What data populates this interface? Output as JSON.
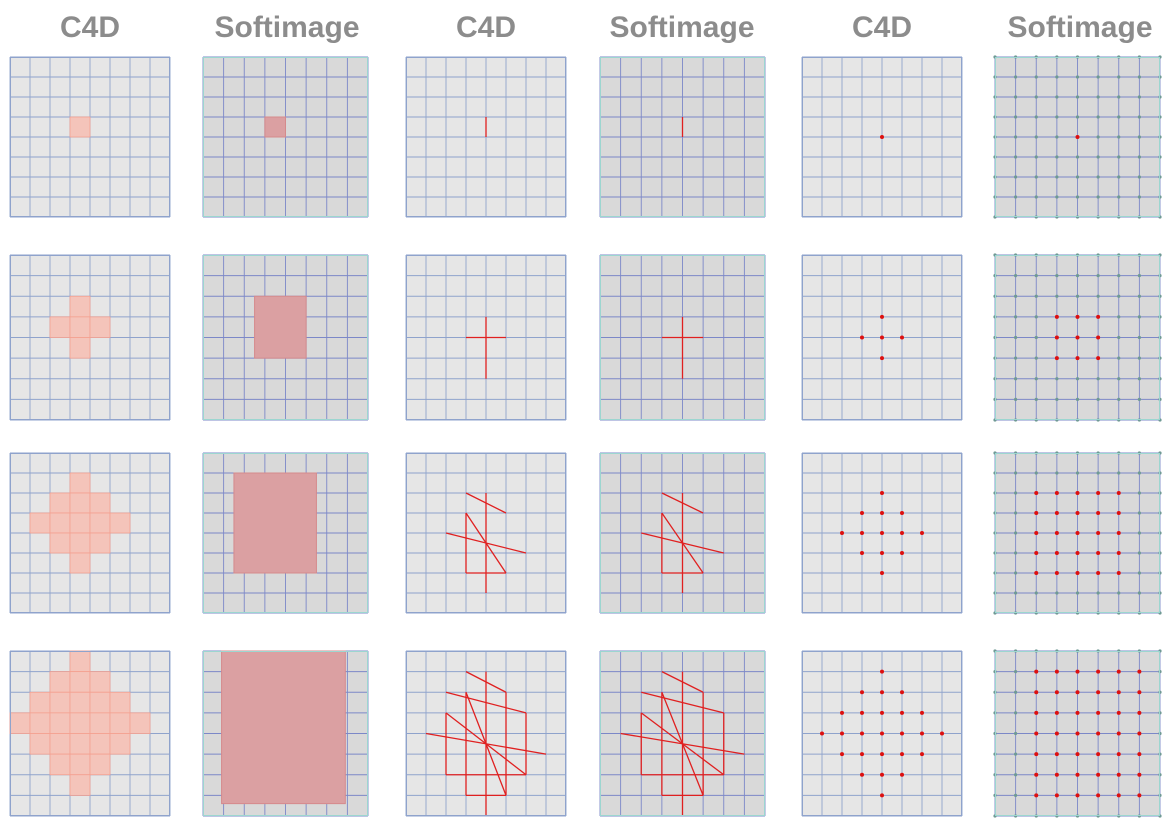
{
  "headers": [
    "C4D",
    "Softimage",
    "C4D",
    "Softimage",
    "C4D",
    "Softimage"
  ],
  "grid_divisions": 8,
  "panel_kinds": [
    "c4d-poly",
    "soft-poly",
    "c4d-edge",
    "soft-edge",
    "c4d-point",
    "soft-point"
  ],
  "rows": [
    {
      "c4d_poly": [
        [
          3,
          3
        ]
      ],
      "soft_poly": [
        3,
        3,
        4,
        4
      ],
      "c4d_edge": [
        [
          4,
          4,
          3,
          4
        ]
      ],
      "soft_edge": [
        [
          4,
          4,
          3,
          4
        ]
      ],
      "c4d_point": [
        [
          4,
          4
        ]
      ],
      "soft_point": [
        [
          4,
          4
        ]
      ]
    },
    {
      "c4d_poly": [
        [
          3,
          2
        ],
        [
          2,
          3
        ],
        [
          3,
          3
        ],
        [
          4,
          3
        ],
        [
          3,
          4
        ]
      ],
      "soft_poly": [
        2.5,
        2,
        5,
        5
      ],
      "c4d_edge": [
        [
          4,
          4,
          3,
          6
        ],
        [
          3,
          5,
          4,
          4
        ]
      ],
      "soft_edge": [
        [
          4,
          4,
          3,
          6
        ],
        [
          3,
          5,
          4,
          4
        ]
      ],
      "c4d_point": [
        [
          4,
          3
        ],
        [
          3,
          4
        ],
        [
          4,
          4
        ],
        [
          5,
          4
        ],
        [
          4,
          5
        ]
      ],
      "soft_point": [
        [
          3,
          3
        ],
        [
          4,
          3
        ],
        [
          5,
          3
        ],
        [
          3,
          4
        ],
        [
          4,
          4
        ],
        [
          5,
          4
        ],
        [
          3,
          5
        ],
        [
          4,
          5
        ],
        [
          5,
          5
        ]
      ]
    },
    {
      "c4d_poly": [
        [
          3,
          1
        ],
        [
          2,
          2
        ],
        [
          3,
          2
        ],
        [
          4,
          2
        ],
        [
          1,
          3
        ],
        [
          2,
          3
        ],
        [
          3,
          3
        ],
        [
          4,
          3
        ],
        [
          5,
          3
        ],
        [
          2,
          4
        ],
        [
          3,
          4
        ],
        [
          4,
          4
        ],
        [
          3,
          5
        ]
      ],
      "soft_poly": [
        1.5,
        1,
        5.5,
        6
      ],
      "c4d_edge": [
        [
          4,
          4,
          2,
          7
        ],
        [
          3,
          5,
          3,
          6
        ],
        [
          2,
          6,
          4,
          5
        ],
        [
          3,
          3,
          3,
          6
        ],
        [
          3,
          5,
          2,
          3
        ],
        [
          3,
          5,
          6,
          6
        ]
      ],
      "soft_edge": [
        [
          4,
          4,
          2,
          7
        ],
        [
          3,
          5,
          3,
          6
        ],
        [
          2,
          6,
          4,
          5
        ],
        [
          3,
          3,
          3,
          6
        ],
        [
          3,
          5,
          2,
          3
        ],
        [
          3,
          5,
          6,
          6
        ]
      ],
      "c4d_point": [
        [
          4,
          2
        ],
        [
          3,
          3
        ],
        [
          4,
          3
        ],
        [
          5,
          3
        ],
        [
          2,
          4
        ],
        [
          3,
          4
        ],
        [
          4,
          4
        ],
        [
          5,
          4
        ],
        [
          6,
          4
        ],
        [
          3,
          5
        ],
        [
          4,
          5
        ],
        [
          5,
          5
        ],
        [
          4,
          6
        ]
      ],
      "soft_point": [
        [
          2,
          2
        ],
        [
          3,
          2
        ],
        [
          4,
          2
        ],
        [
          5,
          2
        ],
        [
          6,
          2
        ],
        [
          2,
          3
        ],
        [
          3,
          3
        ],
        [
          4,
          3
        ],
        [
          5,
          3
        ],
        [
          6,
          3
        ],
        [
          2,
          4
        ],
        [
          3,
          4
        ],
        [
          4,
          4
        ],
        [
          5,
          4
        ],
        [
          6,
          4
        ],
        [
          2,
          5
        ],
        [
          3,
          5
        ],
        [
          4,
          5
        ],
        [
          5,
          5
        ],
        [
          6,
          5
        ],
        [
          2,
          6
        ],
        [
          3,
          6
        ],
        [
          4,
          6
        ],
        [
          5,
          6
        ],
        [
          6,
          6
        ]
      ]
    },
    {
      "c4d_poly": [
        [
          3,
          0
        ],
        [
          2,
          1
        ],
        [
          3,
          1
        ],
        [
          4,
          1
        ],
        [
          1,
          2
        ],
        [
          2,
          2
        ],
        [
          3,
          2
        ],
        [
          4,
          2
        ],
        [
          5,
          2
        ],
        [
          0,
          3
        ],
        [
          1,
          3
        ],
        [
          2,
          3
        ],
        [
          3,
          3
        ],
        [
          4,
          3
        ],
        [
          5,
          3
        ],
        [
          6,
          3
        ],
        [
          1,
          4
        ],
        [
          2,
          4
        ],
        [
          3,
          4
        ],
        [
          4,
          4
        ],
        [
          5,
          4
        ],
        [
          2,
          5
        ],
        [
          3,
          5
        ],
        [
          4,
          5
        ],
        [
          3,
          6
        ]
      ],
      "soft_poly": [
        0.9,
        0,
        6.9,
        7.4
      ],
      "c4d_edge": [
        [
          4,
          4,
          1,
          8
        ],
        [
          3,
          5,
          2,
          7
        ],
        [
          2,
          6,
          3,
          6
        ],
        [
          1,
          7,
          4,
          5
        ],
        [
          3,
          3,
          2,
          7
        ],
        [
          5,
          5,
          2,
          7
        ],
        [
          2,
          2,
          3,
          6
        ],
        [
          6,
          6,
          3,
          6
        ],
        [
          3,
          5,
          1,
          2
        ],
        [
          3,
          5,
          7,
          7
        ],
        [
          2,
          6,
          2,
          3
        ],
        [
          2,
          6,
          6,
          6
        ]
      ],
      "soft_edge": [
        [
          4,
          4,
          1,
          8
        ],
        [
          3,
          5,
          2,
          7
        ],
        [
          2,
          6,
          3,
          6
        ],
        [
          1,
          7,
          4,
          5
        ],
        [
          3,
          3,
          2,
          7
        ],
        [
          5,
          5,
          2,
          7
        ],
        [
          2,
          2,
          3,
          6
        ],
        [
          6,
          6,
          3,
          6
        ],
        [
          3,
          5,
          1,
          2
        ],
        [
          3,
          5,
          7,
          7
        ],
        [
          2,
          6,
          2,
          3
        ],
        [
          2,
          6,
          6,
          6
        ]
      ],
      "c4d_point": [
        [
          4,
          1
        ],
        [
          3,
          2
        ],
        [
          4,
          2
        ],
        [
          5,
          2
        ],
        [
          2,
          3
        ],
        [
          3,
          3
        ],
        [
          4,
          3
        ],
        [
          5,
          3
        ],
        [
          6,
          3
        ],
        [
          1,
          4
        ],
        [
          2,
          4
        ],
        [
          3,
          4
        ],
        [
          4,
          4
        ],
        [
          5,
          4
        ],
        [
          6,
          4
        ],
        [
          7,
          4
        ],
        [
          2,
          5
        ],
        [
          3,
          5
        ],
        [
          4,
          5
        ],
        [
          5,
          5
        ],
        [
          6,
          5
        ],
        [
          3,
          6
        ],
        [
          4,
          6
        ],
        [
          5,
          6
        ],
        [
          4,
          7
        ]
      ],
      "soft_point": [
        [
          2,
          1
        ],
        [
          3,
          1
        ],
        [
          4,
          1
        ],
        [
          5,
          1
        ],
        [
          6,
          1
        ],
        [
          7,
          1
        ],
        [
          2,
          2
        ],
        [
          3,
          2
        ],
        [
          4,
          2
        ],
        [
          5,
          2
        ],
        [
          6,
          2
        ],
        [
          7,
          2
        ],
        [
          2,
          3
        ],
        [
          3,
          3
        ],
        [
          4,
          3
        ],
        [
          5,
          3
        ],
        [
          6,
          3
        ],
        [
          7,
          3
        ],
        [
          2,
          4
        ],
        [
          3,
          4
        ],
        [
          4,
          4
        ],
        [
          5,
          4
        ],
        [
          6,
          4
        ],
        [
          7,
          4
        ],
        [
          2,
          5
        ],
        [
          3,
          5
        ],
        [
          4,
          5
        ],
        [
          5,
          5
        ],
        [
          6,
          5
        ],
        [
          7,
          5
        ],
        [
          2,
          6
        ],
        [
          3,
          6
        ],
        [
          4,
          6
        ],
        [
          5,
          6
        ],
        [
          6,
          6
        ],
        [
          7,
          6
        ],
        [
          2,
          7
        ],
        [
          3,
          7
        ],
        [
          4,
          7
        ],
        [
          5,
          7
        ],
        [
          6,
          7
        ],
        [
          7,
          7
        ]
      ]
    }
  ],
  "colors": {
    "header_text": "#8c8c8c",
    "c4d_background": "#e6e6e6",
    "c4d_grid_line": "#8fa3cc",
    "soft_background": "#d9d9d9",
    "soft_grid_line": "#7c88c8",
    "soft_border": "#9cd6d0",
    "soft_vertex": "#6f9a94",
    "c4d_poly_fill": "#f4c4ba",
    "c4d_poly_edge": "#f4a090",
    "soft_poly_fill": "#dba0a2",
    "soft_poly_edge": "#d58a8c",
    "selection_edge": "#e02020",
    "selection_point": "#dd1010"
  }
}
